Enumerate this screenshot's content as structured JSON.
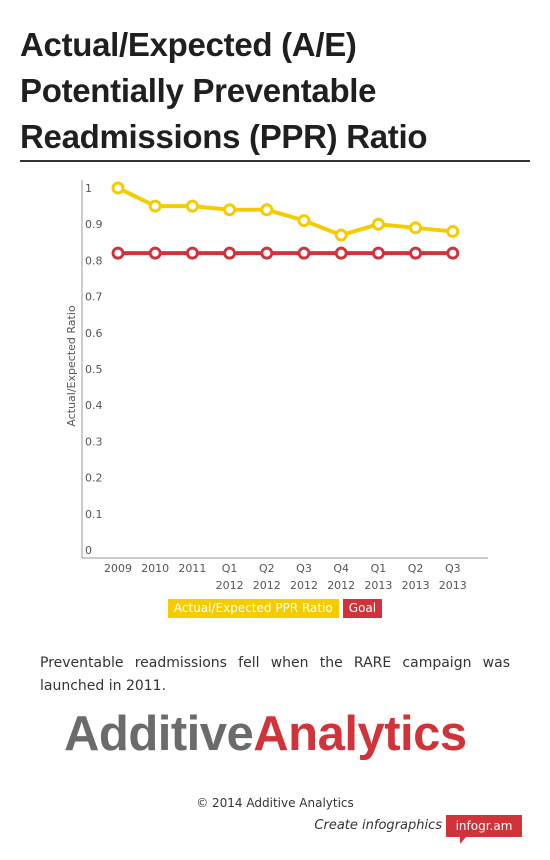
{
  "header": {
    "title": "Actual/Expected (A/E)\nPotentially Preventable\nReadmissions (PPR) Ratio"
  },
  "chart_data": {
    "type": "line",
    "x": [
      "2009",
      "2010",
      "2011",
      "Q1\n2012",
      "Q2\n2012",
      "Q3\n2012",
      "Q4\n2012",
      "Q1\n2013",
      "Q2\n2013",
      "Q3\n2013"
    ],
    "series": [
      {
        "name": "Actual/Expected PPR Ratio",
        "color": "#f5cc00",
        "values": [
          1.0,
          0.95,
          0.95,
          0.94,
          0.94,
          0.91,
          0.87,
          0.9,
          0.89,
          0.88
        ]
      },
      {
        "name": "Goal",
        "color": "#d0333a",
        "values": [
          0.82,
          0.82,
          0.82,
          0.82,
          0.82,
          0.82,
          0.82,
          0.82,
          0.82,
          0.82
        ]
      }
    ],
    "yticks": [
      "0",
      "0.1",
      "0.2",
      "0.3",
      "0.4",
      "0.5",
      "0.6",
      "0.7",
      "0.8",
      "0.9",
      "1"
    ],
    "ylabel": "Actual/Expected Ratio",
    "ylim": [
      0,
      1.0
    ],
    "grid": false,
    "legend_position": "bottom"
  },
  "legend": {
    "items": [
      {
        "label": "Actual/Expected PPR Ratio",
        "color": "#f5cc00"
      },
      {
        "label": "Goal",
        "color": "#d0333a"
      }
    ]
  },
  "description": "Preventable readmissions fell when the RARE campaign was launched in 2011.",
  "logo": {
    "part1": "Additive",
    "part2": "Analytics"
  },
  "footer": {
    "copyright": "© 2014 Additive Analytics",
    "create_text": "Create infographics",
    "badge": "infogr.am"
  }
}
